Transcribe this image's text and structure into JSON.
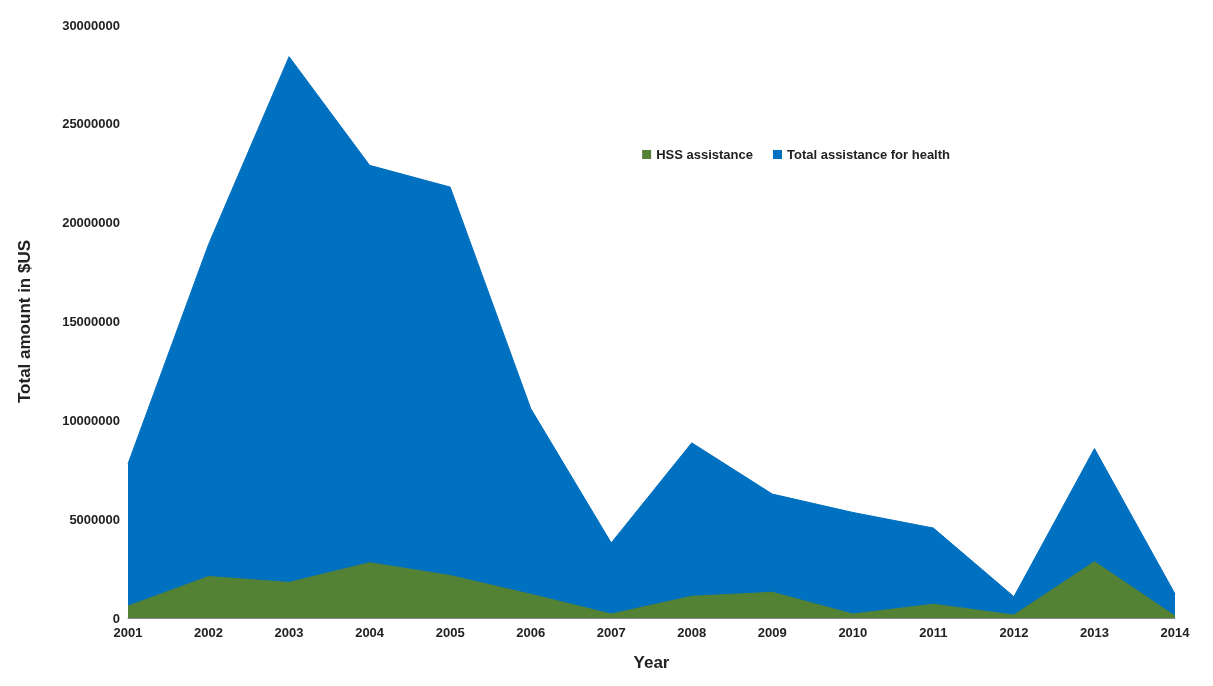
{
  "chart_data": {
    "type": "area",
    "xlabel": "Year",
    "ylabel": "Total amount in $US",
    "categories": [
      "2001",
      "2002",
      "2003",
      "2004",
      "2005",
      "2006",
      "2007",
      "2008",
      "2009",
      "2010",
      "2011",
      "2012",
      "2013",
      "2014"
    ],
    "series": [
      {
        "name": "HSS assistance",
        "color": "#548235",
        "values": [
          600000,
          2100000,
          1800000,
          2800000,
          2150000,
          1200000,
          200000,
          1100000,
          1300000,
          200000,
          700000,
          150000,
          2850000,
          100000
        ]
      },
      {
        "name": "Total assistance for health",
        "color": "#0070c0",
        "values": [
          7800000,
          18900000,
          28400000,
          22900000,
          21800000,
          10600000,
          3800000,
          8860000,
          6270000,
          5340000,
          4550000,
          1080000,
          8570000,
          1220000
        ]
      }
    ],
    "ylim": [
      0,
      30000000
    ],
    "yticks": [
      0,
      5000000,
      10000000,
      15000000,
      20000000,
      25000000,
      30000000
    ],
    "grid": false,
    "legend": "top right"
  }
}
